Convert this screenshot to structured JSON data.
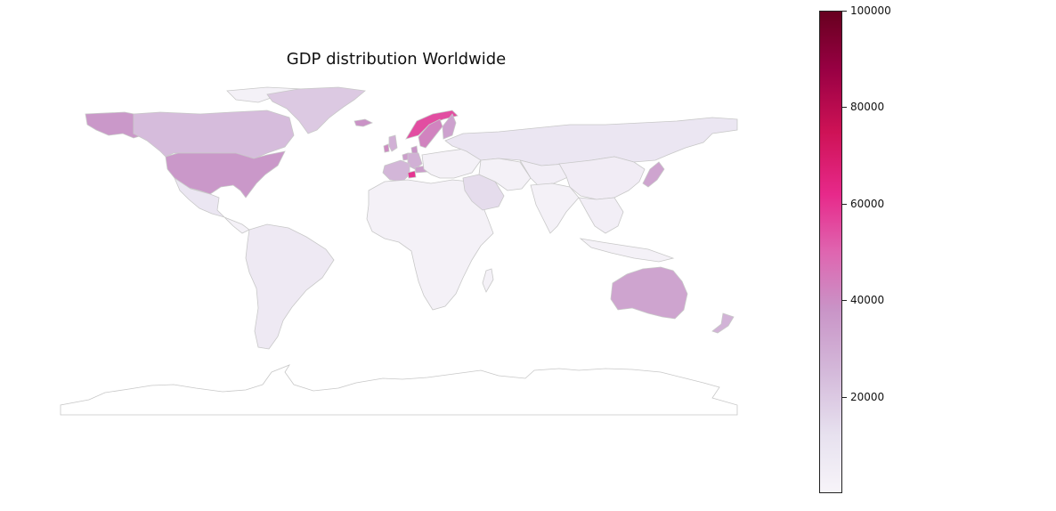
{
  "chart_data": {
    "type": "choropleth",
    "title": "GDP distribution Worldwide",
    "colorbar": {
      "min": 0,
      "max": 100000,
      "ticks": [
        20000,
        40000,
        60000,
        80000,
        100000
      ],
      "tick_labels": [
        "20000",
        "40000",
        "60000",
        "80000",
        "100000"
      ],
      "colormap": [
        "#f7f4f9",
        "#e7e1ef",
        "#d4b9da",
        "#c994c7",
        "#df65b0",
        "#e7298a",
        "#ce1256",
        "#980043",
        "#67001f"
      ]
    },
    "regions": [
      {
        "name": "Norway",
        "value": 55000
      },
      {
        "name": "Switzerland",
        "value": 60000
      },
      {
        "name": "Sweden",
        "value": 42000
      },
      {
        "name": "USA",
        "value": 36000
      },
      {
        "name": "Alaska (USA)",
        "value": 36000
      },
      {
        "name": "Australia",
        "value": 32000
      },
      {
        "name": "Iceland",
        "value": 38000
      },
      {
        "name": "Ireland",
        "value": 40000
      },
      {
        "name": "Denmark",
        "value": 37000
      },
      {
        "name": "Finland",
        "value": 33000
      },
      {
        "name": "Japan",
        "value": 32000
      },
      {
        "name": "Austria",
        "value": 34000
      },
      {
        "name": "Netherlands",
        "value": 34000
      },
      {
        "name": "Canada",
        "value": 24000
      },
      {
        "name": "Greenland",
        "value": 20000
      },
      {
        "name": "New Zealand",
        "value": 27000
      },
      {
        "name": "France",
        "value": 26000
      },
      {
        "name": "Germany",
        "value": 28000
      },
      {
        "name": "United Kingdom",
        "value": 28000
      },
      {
        "name": "Saudi Arabia",
        "value": 14000
      },
      {
        "name": "Russia",
        "value": 9000
      },
      {
        "name": "Mexico",
        "value": 9000
      },
      {
        "name": "South America",
        "value": 7000
      },
      {
        "name": "Africa",
        "value": 2000
      },
      {
        "name": "China",
        "value": 5000
      },
      {
        "name": "India",
        "value": 2000
      },
      {
        "name": "Central Asia",
        "value": 4000
      },
      {
        "name": "Southeast Asia",
        "value": 4000
      },
      {
        "name": "Antarctica",
        "value": 0
      }
    ]
  }
}
